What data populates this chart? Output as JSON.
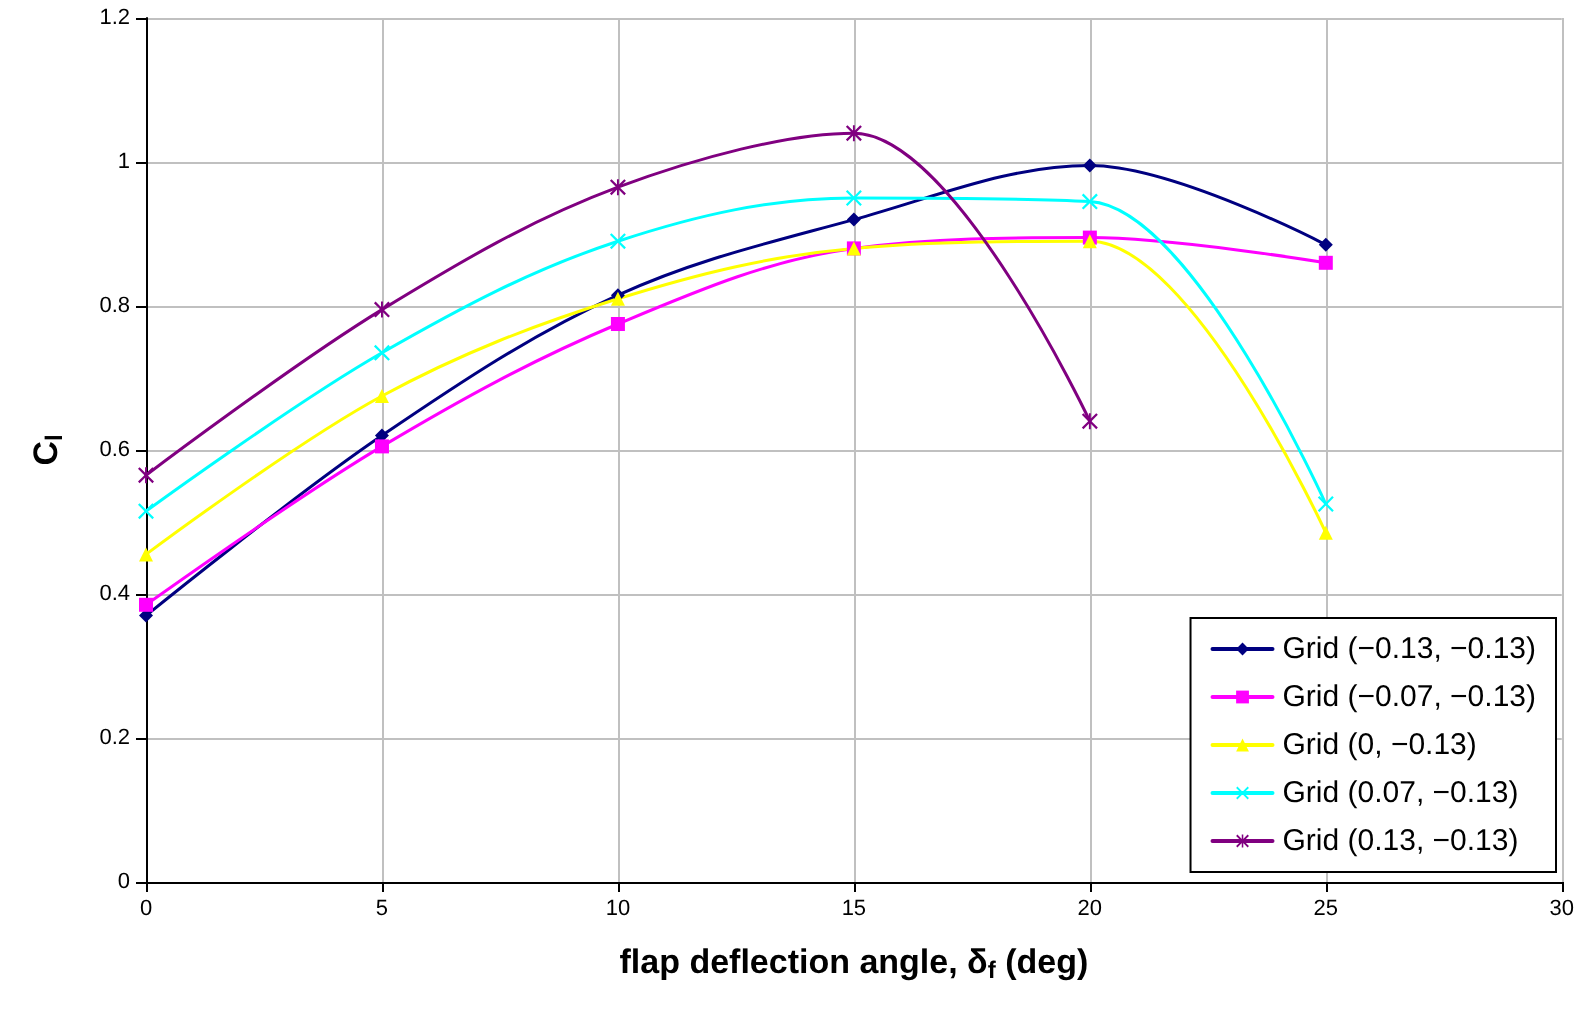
{
  "chart_data": {
    "type": "line",
    "xlabel": "flap deflection angle, δ$_{f}$ (deg)",
    "ylabel": "C$_{l}$",
    "x": [
      0,
      5,
      10,
      15,
      20,
      25
    ],
    "xlim": [
      0,
      30
    ],
    "xticks": [
      0,
      5,
      10,
      15,
      20,
      25,
      30
    ],
    "ylim": [
      0,
      1.2
    ],
    "yticks": [
      0,
      0.2,
      0.4,
      0.6,
      0.8,
      1,
      1.2
    ],
    "grid": true,
    "legend": "bottom right",
    "series": [
      {
        "name": "Grid (−0.13, −0.13)",
        "color": "#000080",
        "marker": "diamond",
        "values": [
          0.37,
          0.62,
          0.815,
          0.92,
          0.995,
          0.885
        ]
      },
      {
        "name": "Grid (−0.07, −0.13)",
        "color": "#ff00ff",
        "marker": "square",
        "values": [
          0.385,
          0.605,
          0.775,
          0.88,
          0.895,
          0.86
        ]
      },
      {
        "name": "Grid (0, −0.13)",
        "color": "#ffff00",
        "marker": "triangle",
        "values": [
          0.455,
          0.675,
          0.81,
          0.88,
          0.89,
          0.485
        ]
      },
      {
        "name": "Grid (0.07, −0.13)",
        "color": "#00ffff",
        "marker": "cross",
        "values": [
          0.515,
          0.735,
          0.89,
          0.95,
          0.945,
          0.525
        ]
      },
      {
        "name": "Grid (0.13, −0.13)",
        "color": "#800080",
        "marker": "star",
        "values": [
          0.565,
          0.795,
          0.965,
          1.04,
          0.64,
          null
        ]
      }
    ]
  }
}
